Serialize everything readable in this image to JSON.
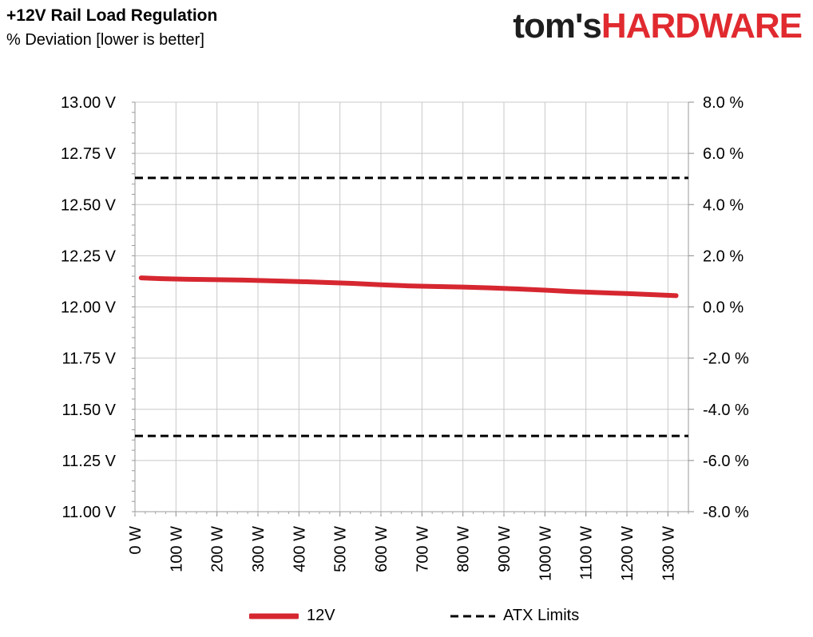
{
  "title": "+12V Rail Load Regulation",
  "subtitle": "% Deviation [lower is better]",
  "logo": {
    "part1": "tom's",
    "part2": "HARDWARE"
  },
  "colors": {
    "series": "#d62730",
    "limits": "#000000",
    "grid": "#c8c8c8",
    "logo_red": "#e02a2f"
  },
  "chart_data": {
    "type": "line",
    "left_axis": {
      "ylim": [
        11.0,
        13.0
      ],
      "ticks": [
        13.0,
        12.75,
        12.5,
        12.25,
        12.0,
        11.75,
        11.5,
        11.25,
        11.0
      ],
      "tick_labels": [
        "13.00 V",
        "12.75 V",
        "12.50 V",
        "12.25 V",
        "12.00 V",
        "11.75 V",
        "11.50 V",
        "11.25 V",
        "11.00 V"
      ]
    },
    "right_axis": {
      "ylim": [
        -8.0,
        8.0
      ],
      "tick_labels": [
        "8.0 %",
        "6.0 %",
        "4.0 %",
        "2.0 %",
        "0.0 %",
        "-2.0 %",
        "-4.0 %",
        "-6.0 %",
        "-8.0 %"
      ]
    },
    "x_axis": {
      "xlim": [
        0,
        1350
      ],
      "ticks": [
        0,
        100,
        200,
        300,
        400,
        500,
        600,
        700,
        800,
        900,
        1000,
        1100,
        1200,
        1300
      ],
      "tick_labels": [
        "0 W",
        "100 W",
        "200 W",
        "300 W",
        "400 W",
        "500 W",
        "600 W",
        "700 W",
        "800 W",
        "900 W",
        "1000 W",
        "1100 W",
        "1200 W",
        "1300 W"
      ]
    },
    "grid": true,
    "series": [
      {
        "name": "12V",
        "x": [
          15,
          65,
          130,
          200,
          265,
          330,
          400,
          460,
          530,
          600,
          665,
          730,
          800,
          865,
          930,
          1000,
          1065,
          1130,
          1200,
          1320
        ],
        "y": [
          12.142,
          12.138,
          12.135,
          12.133,
          12.131,
          12.128,
          12.124,
          12.12,
          12.115,
          12.108,
          12.103,
          12.1,
          12.097,
          12.093,
          12.088,
          12.082,
          12.075,
          12.07,
          12.065,
          12.055
        ]
      }
    ],
    "limits": {
      "name": "ATX Limits",
      "values": [
        12.63,
        11.37
      ]
    },
    "legend": {
      "placement": "bottom",
      "entries": [
        "12V",
        "ATX Limits"
      ]
    }
  }
}
